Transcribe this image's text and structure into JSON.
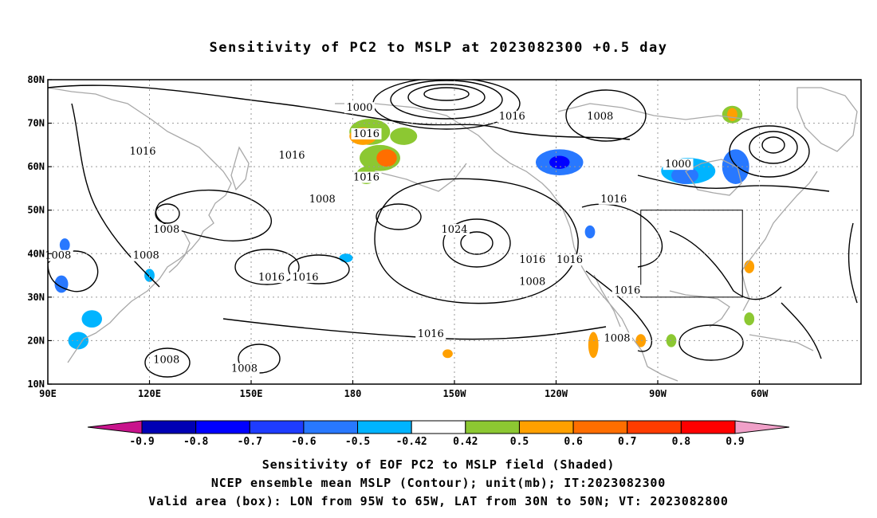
{
  "title": "Sensitivity of PC2 to MSLP at 2023082300 +0.5 day",
  "map": {
    "lon_range": [
      "90E",
      "30W"
    ],
    "lat_range": [
      "10N",
      "80N"
    ],
    "lat_ticks": [
      "80N",
      "70N",
      "60N",
      "50N",
      "40N",
      "30N",
      "20N",
      "10N"
    ],
    "lon_ticks": [
      "90E",
      "120E",
      "150E",
      "180",
      "150W",
      "120W",
      "90W",
      "60W"
    ],
    "gridlines": "dotted",
    "contour_levels_labeled": [
      {
        "label": "1000",
        "lon": 182,
        "lat": 73
      },
      {
        "label": "1016",
        "lon": 184,
        "lat": 67
      },
      {
        "label": "1016",
        "lon": 184,
        "lat": 57
      },
      {
        "label": "1016",
        "lon": 118,
        "lat": 63
      },
      {
        "label": "1016",
        "lon": 162,
        "lat": 62
      },
      {
        "label": "1008",
        "lon": 171,
        "lat": 52
      },
      {
        "label": "1008",
        "lon": 125,
        "lat": 45
      },
      {
        "label": "1008",
        "lon": 93,
        "lat": 39
      },
      {
        "label": "1008",
        "lon": 119,
        "lat": 39
      },
      {
        "label": "1016",
        "lon": 156,
        "lat": 34
      },
      {
        "label": "1016",
        "lon": 166,
        "lat": 34
      },
      {
        "label": "1024",
        "lon": 210,
        "lat": 45
      },
      {
        "label": "1016",
        "lon": 227,
        "lat": 71
      },
      {
        "label": "1008",
        "lon": 253,
        "lat": 71
      },
      {
        "label": "1000",
        "lon": 276,
        "lat": 60
      },
      {
        "label": "1016",
        "lon": 257,
        "lat": 52
      },
      {
        "label": "1016",
        "lon": 233,
        "lat": 38
      },
      {
        "label": "1016",
        "lon": 244,
        "lat": 38
      },
      {
        "label": "1008",
        "lon": 233,
        "lat": 33
      },
      {
        "label": "1016",
        "lon": 261,
        "lat": 31
      },
      {
        "label": "1016",
        "lon": 203,
        "lat": 21
      },
      {
        "label": "1008",
        "lon": 258,
        "lat": 20
      },
      {
        "label": "1008",
        "lon": 125,
        "lat": 15
      },
      {
        "label": "1008",
        "lon": 148,
        "lat": 13
      }
    ],
    "valid_box": {
      "lon_min": 265,
      "lon_max": 295,
      "lat_min": 30,
      "lat_max": 50
    }
  },
  "colorbar": {
    "labels": [
      "-0.9",
      "-0.8",
      "-0.7",
      "-0.6",
      "-0.5",
      "-0.42",
      "0.42",
      "0.5",
      "0.6",
      "0.7",
      "0.8",
      "0.9"
    ],
    "colors": [
      "#a000c8",
      "#0000b4",
      "#0000ff",
      "#1e3cff",
      "#2878ff",
      "#00b4ff",
      "#ffffff",
      "#8cc832",
      "#ffa000",
      "#ff6e00",
      "#ff3c00",
      "#ff0000",
      "#f0a0c8"
    ],
    "low_arrow_color": "#c8148c",
    "high_arrow_color": "#f0a0c8"
  },
  "footer": {
    "line1": "Sensitivity of EOF PC2 to MSLP field (Shaded)",
    "line2": "NCEP ensemble mean MSLP (Contour); unit(mb); IT:2023082300",
    "line3": "Valid area (box): LON from 95W to 65W, LAT from 30N to 50N; VT: 2023082800"
  },
  "shading_blobs": [
    {
      "lon": 185,
      "lat": 68,
      "rx": 6,
      "ry": 3,
      "color": "#8cc832"
    },
    {
      "lon": 183,
      "lat": 67,
      "rx": 4,
      "ry": 2,
      "color": "#ffa000"
    },
    {
      "lon": 188,
      "lat": 62,
      "rx": 6,
      "ry": 3,
      "color": "#8cc832"
    },
    {
      "lon": 190,
      "lat": 62,
      "rx": 3,
      "ry": 2,
      "color": "#ff6e00"
    },
    {
      "lon": 195,
      "lat": 67,
      "rx": 4,
      "ry": 2,
      "color": "#8cc832"
    },
    {
      "lon": 184,
      "lat": 58,
      "rx": 3,
      "ry": 2,
      "color": "#8cc832"
    },
    {
      "lon": 241,
      "lat": 61,
      "rx": 7,
      "ry": 3,
      "color": "#2878ff"
    },
    {
      "lon": 241,
      "lat": 61,
      "rx": 3,
      "ry": 1.5,
      "color": "#0000ff"
    },
    {
      "lon": 279,
      "lat": 59,
      "rx": 8,
      "ry": 3,
      "color": "#00b4ff"
    },
    {
      "lon": 278,
      "lat": 58,
      "rx": 4,
      "ry": 2,
      "color": "#2878ff"
    },
    {
      "lon": 293,
      "lat": 60,
      "rx": 4,
      "ry": 4,
      "color": "#2878ff"
    },
    {
      "lon": 292,
      "lat": 72,
      "rx": 3,
      "ry": 2,
      "color": "#8cc832"
    },
    {
      "lon": 292,
      "lat": 72,
      "rx": 1.5,
      "ry": 1.5,
      "color": "#ffa000"
    },
    {
      "lon": 250,
      "lat": 45,
      "rx": 1.5,
      "ry": 1.5,
      "color": "#2878ff"
    },
    {
      "lon": 251,
      "lat": 19,
      "rx": 1.5,
      "ry": 3,
      "color": "#ffa000"
    },
    {
      "lon": 265,
      "lat": 20,
      "rx": 1.5,
      "ry": 1.5,
      "color": "#ffa000"
    },
    {
      "lon": 94,
      "lat": 33,
      "rx": 2,
      "ry": 2,
      "color": "#2878ff"
    },
    {
      "lon": 95,
      "lat": 42,
      "rx": 1.5,
      "ry": 1.5,
      "color": "#2878ff"
    },
    {
      "lon": 103,
      "lat": 25,
      "rx": 3,
      "ry": 2,
      "color": "#00b4ff"
    },
    {
      "lon": 99,
      "lat": 20,
      "rx": 3,
      "ry": 2,
      "color": "#00b4ff"
    },
    {
      "lon": 120,
      "lat": 35,
      "rx": 1.5,
      "ry": 1.5,
      "color": "#00b4ff"
    },
    {
      "lon": 178,
      "lat": 39,
      "rx": 2,
      "ry": 1,
      "color": "#00b4ff"
    },
    {
      "lon": 274,
      "lat": 20,
      "rx": 1.5,
      "ry": 1.5,
      "color": "#8cc832"
    },
    {
      "lon": 208,
      "lat": 17,
      "rx": 1.5,
      "ry": 1,
      "color": "#ffa000"
    },
    {
      "lon": 297,
      "lat": 25,
      "rx": 1.5,
      "ry": 1.5,
      "color": "#8cc832"
    },
    {
      "lon": 297,
      "lat": 37,
      "rx": 1.5,
      "ry": 1.5,
      "color": "#ffa000"
    }
  ]
}
